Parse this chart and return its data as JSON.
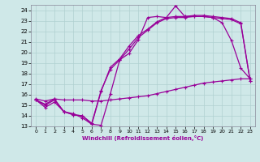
{
  "xlabel": "Windchill (Refroidissement éolien,°C)",
  "xlim": [
    -0.5,
    23.5
  ],
  "ylim": [
    13,
    24.5
  ],
  "yticks": [
    13,
    14,
    15,
    16,
    17,
    18,
    19,
    20,
    21,
    22,
    23,
    24
  ],
  "xticks": [
    0,
    1,
    2,
    3,
    4,
    5,
    6,
    7,
    8,
    9,
    10,
    11,
    12,
    13,
    14,
    15,
    16,
    17,
    18,
    19,
    20,
    21,
    22,
    23
  ],
  "bg_color": "#cfe8e8",
  "grid_color": "#b0d0d0",
  "line_color": "#990099",
  "line_width": 0.9,
  "marker_size": 3,
  "curves": [
    [
      15.5,
      14.8,
      15.3,
      14.4,
      14.2,
      13.8,
      13.2,
      13.1,
      16.1,
      19.3,
      19.9,
      21.2,
      23.3,
      23.4,
      23.3,
      24.4,
      23.4,
      23.4,
      23.4,
      23.3,
      22.8,
      21.1,
      18.5,
      17.5
    ],
    [
      15.5,
      15.0,
      15.5,
      14.4,
      14.1,
      14.0,
      13.3,
      16.4,
      18.4,
      19.3,
      20.3,
      21.4,
      22.1,
      22.8,
      23.2,
      23.3,
      23.3,
      23.4,
      23.4,
      23.3,
      23.2,
      23.1,
      22.7,
      17.3
    ],
    [
      15.5,
      15.1,
      15.6,
      14.4,
      14.1,
      14.0,
      13.2,
      16.3,
      18.6,
      19.4,
      20.6,
      21.6,
      22.2,
      22.9,
      23.3,
      23.4,
      23.4,
      23.5,
      23.5,
      23.4,
      23.3,
      23.2,
      22.8,
      17.3
    ],
    [
      15.6,
      15.4,
      15.6,
      15.5,
      15.5,
      15.5,
      15.4,
      15.4,
      15.5,
      15.6,
      15.7,
      15.8,
      15.9,
      16.1,
      16.3,
      16.5,
      16.7,
      16.9,
      17.1,
      17.2,
      17.3,
      17.4,
      17.5,
      17.5
    ]
  ]
}
